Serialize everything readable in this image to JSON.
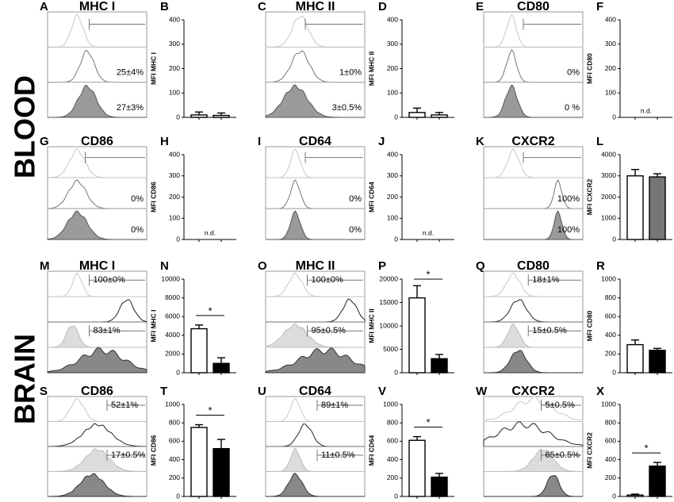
{
  "sections": [
    "BLOOD",
    "BRAIN"
  ],
  "histograms": [
    {
      "letter": "A",
      "title": "MHC I",
      "labels": [
        "25±4%",
        "27±3%"
      ]
    },
    {
      "letter": "C",
      "title": "MHC II",
      "labels": [
        "1±0%",
        "3±0.5%"
      ]
    },
    {
      "letter": "E",
      "title": "CD80",
      "labels": [
        "0%",
        "0 %"
      ]
    },
    {
      "letter": "G",
      "title": "CD86",
      "labels": [
        "0%",
        "0%"
      ]
    },
    {
      "letter": "I",
      "title": "CD64",
      "labels": [
        "0%",
        "0%"
      ]
    },
    {
      "letter": "K",
      "title": "CXCR2",
      "labels": [
        "100%",
        "100%"
      ]
    },
    {
      "letter": "M",
      "title": "MHC I",
      "labels": [
        "100±0%",
        "83±1%"
      ]
    },
    {
      "letter": "O",
      "title": "MHC II",
      "labels": [
        "100±0%",
        "95±0.5%"
      ]
    },
    {
      "letter": "Q",
      "title": "CD80",
      "labels": [
        "18±1%",
        "15±0.5%"
      ]
    },
    {
      "letter": "S",
      "title": "CD86",
      "labels": [
        "52±1%",
        "17±0.5%"
      ]
    },
    {
      "letter": "U",
      "title": "CD64",
      "labels": [
        "89±1%",
        "11±0.5%"
      ]
    },
    {
      "letter": "W",
      "title": "CXCR2",
      "labels": [
        "5±0.5%",
        "65±0.5%"
      ]
    }
  ],
  "chart_data": [
    {
      "type": "bar",
      "letter": "B",
      "y_label": "MFI MHC I",
      "ylim": [
        0,
        400
      ],
      "yticks": [
        0,
        100,
        200,
        300,
        400
      ],
      "values": [
        10,
        8
      ],
      "errors": [
        12,
        10
      ],
      "colors": [
        "#ffffff",
        "#ffffff"
      ]
    },
    {
      "type": "bar",
      "letter": "D",
      "y_label": "MFI MHC II",
      "ylim": [
        0,
        400
      ],
      "yticks": [
        0,
        100,
        200,
        300,
        400
      ],
      "values": [
        20,
        10
      ],
      "errors": [
        18,
        10
      ],
      "colors": [
        "#ffffff",
        "#ffffff"
      ]
    },
    {
      "type": "bar",
      "letter": "F",
      "y_label": "MFI CD80",
      "ylim": [
        0,
        400
      ],
      "yticks": [
        0,
        100,
        200,
        300,
        400
      ],
      "annotation": "n.d."
    },
    {
      "type": "bar",
      "letter": "H",
      "y_label": "MFI CD86",
      "ylim": [
        0,
        400
      ],
      "yticks": [
        0,
        100,
        200,
        300,
        400
      ],
      "annotation": "n.d."
    },
    {
      "type": "bar",
      "letter": "J",
      "y_label": "MFI CD64",
      "ylim": [
        0,
        400
      ],
      "yticks": [
        0,
        100,
        200,
        300,
        400
      ],
      "annotation": "n.d."
    },
    {
      "type": "bar",
      "letter": "L",
      "y_label": "MFI CXCR2",
      "ylim": [
        0,
        4000
      ],
      "yticks": [
        0,
        1000,
        2000,
        3000,
        4000
      ],
      "values": [
        3000,
        2950
      ],
      "errors": [
        300,
        150
      ],
      "colors": [
        "#ffffff",
        "#777777"
      ]
    },
    {
      "type": "bar",
      "letter": "N",
      "y_label": "MFI MHC I",
      "ylim": [
        0,
        10000
      ],
      "yticks": [
        0,
        2000,
        4000,
        6000,
        8000,
        10000
      ],
      "values": [
        4700,
        1000
      ],
      "errors": [
        400,
        600
      ],
      "colors": [
        "#ffffff",
        "#000000"
      ],
      "significance": "*"
    },
    {
      "type": "bar",
      "letter": "P",
      "y_label": "MFI MHC II",
      "ylim": [
        0,
        20000
      ],
      "yticks": [
        0,
        5000,
        10000,
        15000,
        20000
      ],
      "values": [
        16000,
        3000
      ],
      "errors": [
        2600,
        900
      ],
      "colors": [
        "#ffffff",
        "#000000"
      ],
      "significance": "*"
    },
    {
      "type": "bar",
      "letter": "R",
      "y_label": "MFI CD80",
      "ylim": [
        0,
        1000
      ],
      "yticks": [
        0,
        200,
        400,
        600,
        800,
        1000
      ],
      "values": [
        300,
        240
      ],
      "errors": [
        50,
        20
      ],
      "colors": [
        "#ffffff",
        "#000000"
      ]
    },
    {
      "type": "bar",
      "letter": "T",
      "y_label": "MFI CD86",
      "ylim": [
        0,
        1000
      ],
      "yticks": [
        0,
        200,
        400,
        600,
        800,
        1000
      ],
      "values": [
        750,
        520
      ],
      "errors": [
        30,
        100
      ],
      "colors": [
        "#ffffff",
        "#000000"
      ],
      "significance": "*"
    },
    {
      "type": "bar",
      "letter": "V",
      "y_label": "MFI CD64",
      "ylim": [
        0,
        1000
      ],
      "yticks": [
        0,
        200,
        400,
        600,
        800,
        1000
      ],
      "values": [
        610,
        210
      ],
      "errors": [
        40,
        40
      ],
      "colors": [
        "#ffffff",
        "#000000"
      ],
      "significance": "*"
    },
    {
      "type": "bar",
      "letter": "X",
      "y_label": "MFI CXCR2",
      "ylim": [
        0,
        1000
      ],
      "yticks": [
        0,
        200,
        400,
        600,
        800,
        1000
      ],
      "values": [
        15,
        330
      ],
      "errors": [
        10,
        40
      ],
      "colors": [
        "#ffffff",
        "#000000"
      ],
      "significance": "*"
    }
  ]
}
